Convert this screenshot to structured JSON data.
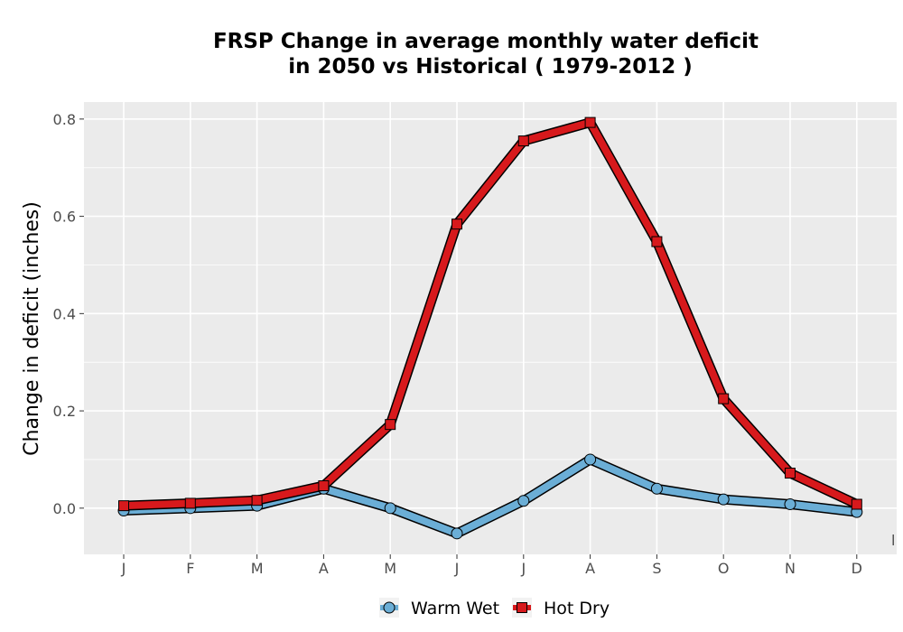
{
  "chart_data": {
    "type": "line",
    "title_line1": "FRSP  Change in average monthly water deficit",
    "title_line2": "in 2050 vs Historical ( 1979-2012 )",
    "xlabel": "",
    "ylabel": "Change in deficit (inches)",
    "categories": [
      "J",
      "F",
      "M",
      "A",
      "M",
      "J",
      "J",
      "A",
      "S",
      "O",
      "N",
      "D"
    ],
    "yticks": [
      "0.0",
      "0.2",
      "0.4",
      "0.6",
      "0.8"
    ],
    "ylim": [
      -0.095,
      0.835
    ],
    "grid": true,
    "legend_position": "bottom",
    "series": [
      {
        "name": "Warm Wet",
        "marker": "circle",
        "color": "#6baed6",
        "values": [
          -0.005,
          0.0,
          0.005,
          0.04,
          0.0,
          -0.052,
          0.015,
          0.1,
          0.04,
          0.018,
          0.008,
          -0.008
        ]
      },
      {
        "name": "Hot Dry",
        "marker": "square",
        "color": "#d7191c",
        "values": [
          0.005,
          0.01,
          0.016,
          0.046,
          0.172,
          0.584,
          0.755,
          0.793,
          0.548,
          0.225,
          0.072,
          0.008
        ]
      }
    ],
    "stray_label": "l"
  }
}
